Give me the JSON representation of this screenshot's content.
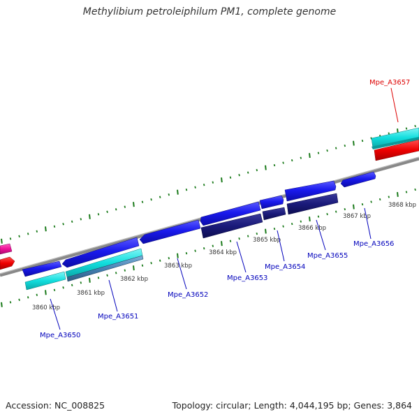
{
  "title": "Methylibium petroleiphilum PM1, complete genome",
  "footer": {
    "accession": "Accession: NC_008825",
    "summary": "Topology: circular; Length: 4,044,195 bp; Genes: 3,864"
  },
  "colors": {
    "forward_gene": "#1a1aee",
    "reverse_gene": "#1a1a7a",
    "cyan_feature": "#11dddd",
    "steelblue_feature": "#4682b4",
    "red_feature": "#ee0000",
    "pink_feature": "#ee1199",
    "backbone": "#888888",
    "ticks": "#1a7a1a",
    "label_blue": "#0000bb",
    "label_red": "#dd0000"
  },
  "kbp_labels": [
    "3860 kbp",
    "3861 kbp",
    "3862 kbp",
    "3863 kbp",
    "3864 kbp",
    "3865 kbp",
    "3866 kbp",
    "3867 kbp",
    "3868 kbp"
  ],
  "genes": [
    {
      "id": "Mpe_A3650",
      "color": "blue"
    },
    {
      "id": "Mpe_A3651",
      "color": "blue"
    },
    {
      "id": "Mpe_A3652",
      "color": "blue"
    },
    {
      "id": "Mpe_A3653",
      "color": "blue"
    },
    {
      "id": "Mpe_A3654",
      "color": "blue"
    },
    {
      "id": "Mpe_A3655",
      "color": "blue"
    },
    {
      "id": "Mpe_A3656",
      "color": "blue"
    },
    {
      "id": "Mpe_A3657",
      "color": "red"
    }
  ]
}
